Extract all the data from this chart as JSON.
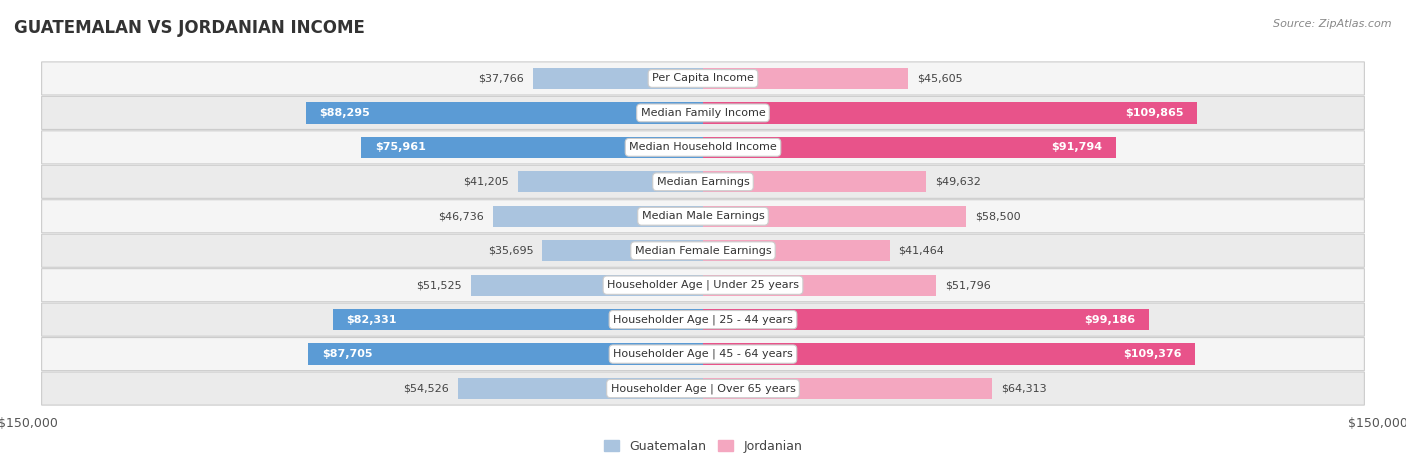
{
  "title": "GUATEMALAN VS JORDANIAN INCOME",
  "source": "Source: ZipAtlas.com",
  "categories": [
    "Per Capita Income",
    "Median Family Income",
    "Median Household Income",
    "Median Earnings",
    "Median Male Earnings",
    "Median Female Earnings",
    "Householder Age | Under 25 years",
    "Householder Age | 25 - 44 years",
    "Householder Age | 45 - 64 years",
    "Householder Age | Over 65 years"
  ],
  "guatemalan": [
    37766,
    88295,
    75961,
    41205,
    46736,
    35695,
    51525,
    82331,
    87705,
    54526
  ],
  "jordanian": [
    45605,
    109865,
    91794,
    49632,
    58500,
    41464,
    51796,
    99186,
    109376,
    64313
  ],
  "guatemalan_labels": [
    "$37,766",
    "$88,295",
    "$75,961",
    "$41,205",
    "$46,736",
    "$35,695",
    "$51,525",
    "$82,331",
    "$87,705",
    "$54,526"
  ],
  "jordanian_labels": [
    "$45,605",
    "$109,865",
    "$91,794",
    "$49,632",
    "$58,500",
    "$41,464",
    "$51,796",
    "$99,186",
    "$109,376",
    "$64,313"
  ],
  "guatemalan_light": "#aac4df",
  "guatemalan_dark": "#5b9bd5",
  "jordanian_light": "#f4a7c0",
  "jordanian_dark": "#e8538a",
  "guatemalan_large": [
    false,
    true,
    true,
    false,
    false,
    false,
    false,
    true,
    true,
    false
  ],
  "jordanian_large": [
    false,
    true,
    true,
    false,
    false,
    false,
    false,
    true,
    true,
    false
  ],
  "max_value": 150000,
  "axis_label": "$150,000",
  "background_color": "#ffffff",
  "legend_guatemalan": "Guatemalan",
  "legend_jordanian": "Jordanian",
  "row_colors": [
    "#f5f5f5",
    "#ebebeb",
    "#f5f5f5",
    "#ebebeb",
    "#f5f5f5",
    "#ebebeb",
    "#f5f5f5",
    "#ebebeb",
    "#f5f5f5",
    "#ebebeb"
  ]
}
